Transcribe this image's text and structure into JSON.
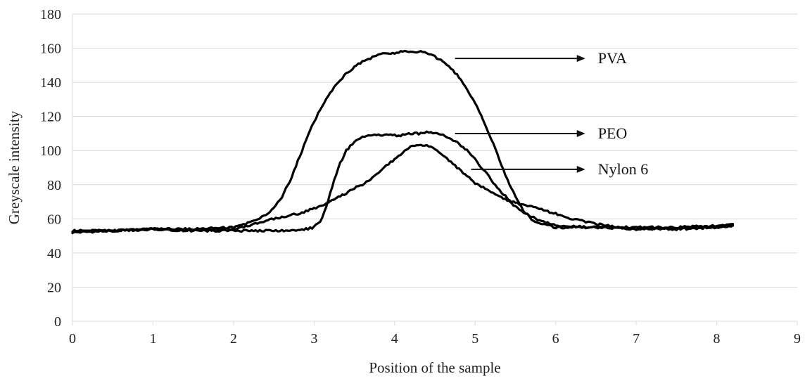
{
  "chart_data": {
    "type": "line",
    "title": "",
    "xlabel": "Position of the sample",
    "ylabel": "Greyscale intensity",
    "xlim": [
      0,
      9
    ],
    "ylim": [
      0,
      180
    ],
    "x_ticks": [
      0,
      1,
      2,
      3,
      4,
      5,
      6,
      7,
      8,
      9
    ],
    "y_ticks": [
      0,
      20,
      40,
      60,
      80,
      100,
      120,
      140,
      160,
      180
    ],
    "grid": "horizontal",
    "legend": "none",
    "series": [
      {
        "name": "PVA",
        "x": [
          0,
          0.5,
          1,
          1.5,
          2,
          2.2,
          2.4,
          2.5,
          2.6,
          2.7,
          2.8,
          2.9,
          3.0,
          3.1,
          3.2,
          3.3,
          3.4,
          3.5,
          3.6,
          3.7,
          3.8,
          3.9,
          4.0,
          4.1,
          4.2,
          4.3,
          4.4,
          4.5,
          4.6,
          4.7,
          4.8,
          4.9,
          5.0,
          5.1,
          5.2,
          5.3,
          5.4,
          5.5,
          5.6,
          5.7,
          5.8,
          5.9,
          6.0,
          6.2,
          6.5,
          7.0,
          7.5,
          8.0,
          8.2
        ],
        "y": [
          53,
          53,
          54,
          54,
          55,
          58,
          62,
          66,
          73,
          82,
          94,
          106,
          117,
          126,
          134,
          140,
          145,
          149,
          152,
          154,
          156,
          157,
          157,
          158,
          158,
          158,
          157,
          155,
          152,
          148,
          143,
          136,
          128,
          118,
          107,
          95,
          83,
          73,
          65,
          60,
          57,
          56,
          55,
          55,
          55,
          54,
          55,
          56,
          57
        ]
      },
      {
        "name": "PEO",
        "x": [
          0,
          0.5,
          1,
          1.5,
          2,
          2.5,
          2.8,
          3.0,
          3.1,
          3.2,
          3.3,
          3.4,
          3.5,
          3.6,
          3.7,
          3.8,
          3.9,
          4.0,
          4.1,
          4.2,
          4.3,
          4.4,
          4.5,
          4.6,
          4.7,
          4.8,
          4.9,
          5.0,
          5.1,
          5.2,
          5.3,
          5.4,
          5.5,
          5.6,
          5.8,
          6.0,
          6.5,
          7.0,
          7.5,
          8.0,
          8.2
        ],
        "y": [
          52,
          53,
          54,
          53,
          53,
          53,
          53,
          55,
          60,
          75,
          90,
          100,
          105,
          108,
          109,
          109,
          109,
          109,
          109,
          110,
          110,
          111,
          110,
          109,
          107,
          104,
          100,
          95,
          89,
          83,
          77,
          72,
          67,
          64,
          59,
          56,
          55,
          55,
          55,
          55,
          56
        ]
      },
      {
        "name": "Nylon 6",
        "x": [
          0,
          0.5,
          1,
          1.5,
          2,
          2.2,
          2.5,
          2.8,
          3.0,
          3.2,
          3.4,
          3.5,
          3.6,
          3.7,
          3.8,
          3.9,
          4.0,
          4.1,
          4.2,
          4.3,
          4.4,
          4.5,
          4.6,
          4.7,
          4.8,
          4.9,
          5.0,
          5.2,
          5.4,
          5.6,
          5.8,
          6.0,
          6.2,
          6.5,
          7.0,
          7.5,
          8.0,
          8.2
        ],
        "y": [
          53,
          53,
          54,
          53,
          54,
          56,
          60,
          63,
          66,
          70,
          75,
          78,
          80,
          83,
          87,
          91,
          95,
          99,
          102,
          103,
          103,
          101,
          97,
          93,
          89,
          85,
          81,
          76,
          71,
          68,
          66,
          63,
          60,
          57,
          54,
          54,
          55,
          56
        ]
      }
    ],
    "annotations": [
      {
        "text": "PVA",
        "series": "PVA",
        "x_start": 4.75,
        "x_end": 6.35,
        "y": 154
      },
      {
        "text": "PEO",
        "series": "PEO",
        "x_start": 4.75,
        "x_end": 6.35,
        "y": 110
      },
      {
        "text": "Nylon 6",
        "series": "Nylon 6",
        "x_start": 4.95,
        "x_end": 6.35,
        "y": 89
      }
    ]
  }
}
